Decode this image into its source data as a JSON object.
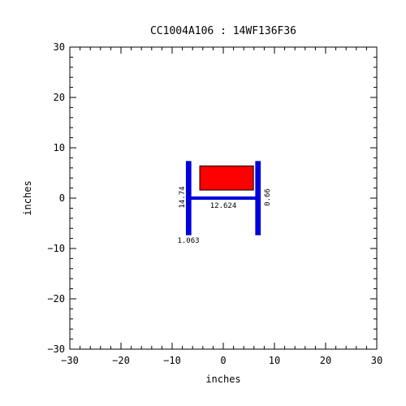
{
  "chart_data": {
    "type": "diagram",
    "title": "CC1004A106 : 14WF136F36",
    "xlabel": "inches",
    "ylabel": "inches",
    "xlim": [
      -30,
      30
    ],
    "ylim": [
      -30,
      30
    ],
    "major_ticks": [
      -30,
      -20,
      -10,
      0,
      10,
      20,
      30
    ],
    "minor_step": 2,
    "tick_labels": [
      "−30",
      "−20",
      "−10",
      "0",
      "10",
      "20",
      "30"
    ],
    "section": {
      "steel_color": "#0000dd",
      "flanges": [
        {
          "x": -6.78,
          "y_min": -7.37,
          "y_max": 7.37,
          "thickness": 1.063
        },
        {
          "x": 6.78,
          "y_min": -7.37,
          "y_max": 7.37,
          "thickness": 1.063
        }
      ],
      "web": {
        "x_min": -6.78,
        "x_max": 6.78,
        "y": 0,
        "thickness": 0.66
      }
    },
    "concrete_block": {
      "color": "#ff0000",
      "x_min": -4.6,
      "x_max": 5.9,
      "y_min": 1.6,
      "y_max": 6.4
    },
    "dimensions": {
      "flange_depth": "14.74",
      "web_length": "12.624",
      "web_thickness": "0.66",
      "flange_thickness": "1.063"
    }
  }
}
